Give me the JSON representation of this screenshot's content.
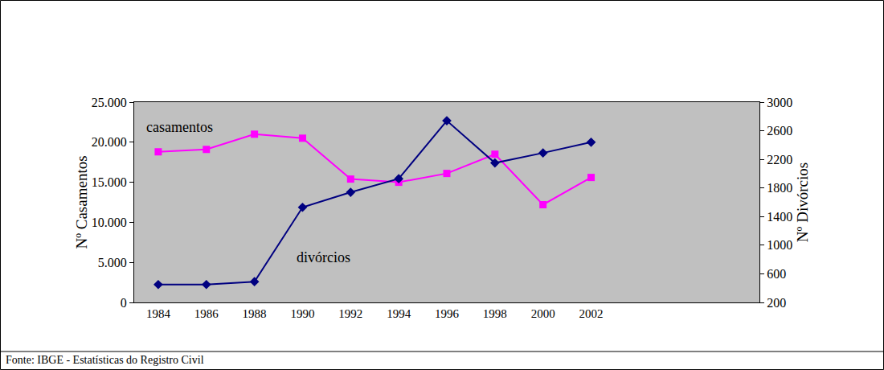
{
  "chart_data": {
    "type": "line",
    "categories": [
      "1984",
      "1986",
      "1988",
      "1990",
      "1992",
      "1994",
      "1996",
      "1998",
      "2000",
      "2002",
      null,
      null,
      null
    ],
    "series": [
      {
        "name": "casamentos",
        "color": "#ff00ff",
        "marker": "square",
        "line_style": "solid",
        "axis": "y",
        "values": [
          18800,
          19100,
          21000,
          20500,
          15400,
          15000,
          16100,
          18500,
          12200,
          15600,
          null,
          null,
          null
        ]
      },
      {
        "name": "divórcios",
        "color": "#000080",
        "marker": "diamond",
        "line_style": "solid",
        "axis": "y2",
        "values": [
          450,
          450,
          490,
          1530,
          1740,
          1930,
          2740,
          2150,
          2290,
          2440,
          null,
          null,
          null
        ]
      }
    ],
    "y_label": "Nº Casamentos",
    "y2_label": "Nº Divórcios",
    "ylim": [
      0,
      25000
    ],
    "yticks": [
      0,
      {
        "value": 5000,
        "label": "5.000"
      },
      {
        "value": 10000,
        "label": "10.000"
      },
      {
        "value": 15000,
        "label": "15.000"
      },
      {
        "value": 20000,
        "label": "20.000"
      },
      {
        "value": 25000,
        "label": "25.000"
      }
    ],
    "y2lim": [
      200,
      3000
    ],
    "y2ticks": [
      200,
      600,
      1000,
      1400,
      1800,
      2200,
      2600,
      3000
    ],
    "grid": false,
    "annotations": [
      "Fonte: IBGE - Estatísticas do Registro Civil"
    ]
  }
}
